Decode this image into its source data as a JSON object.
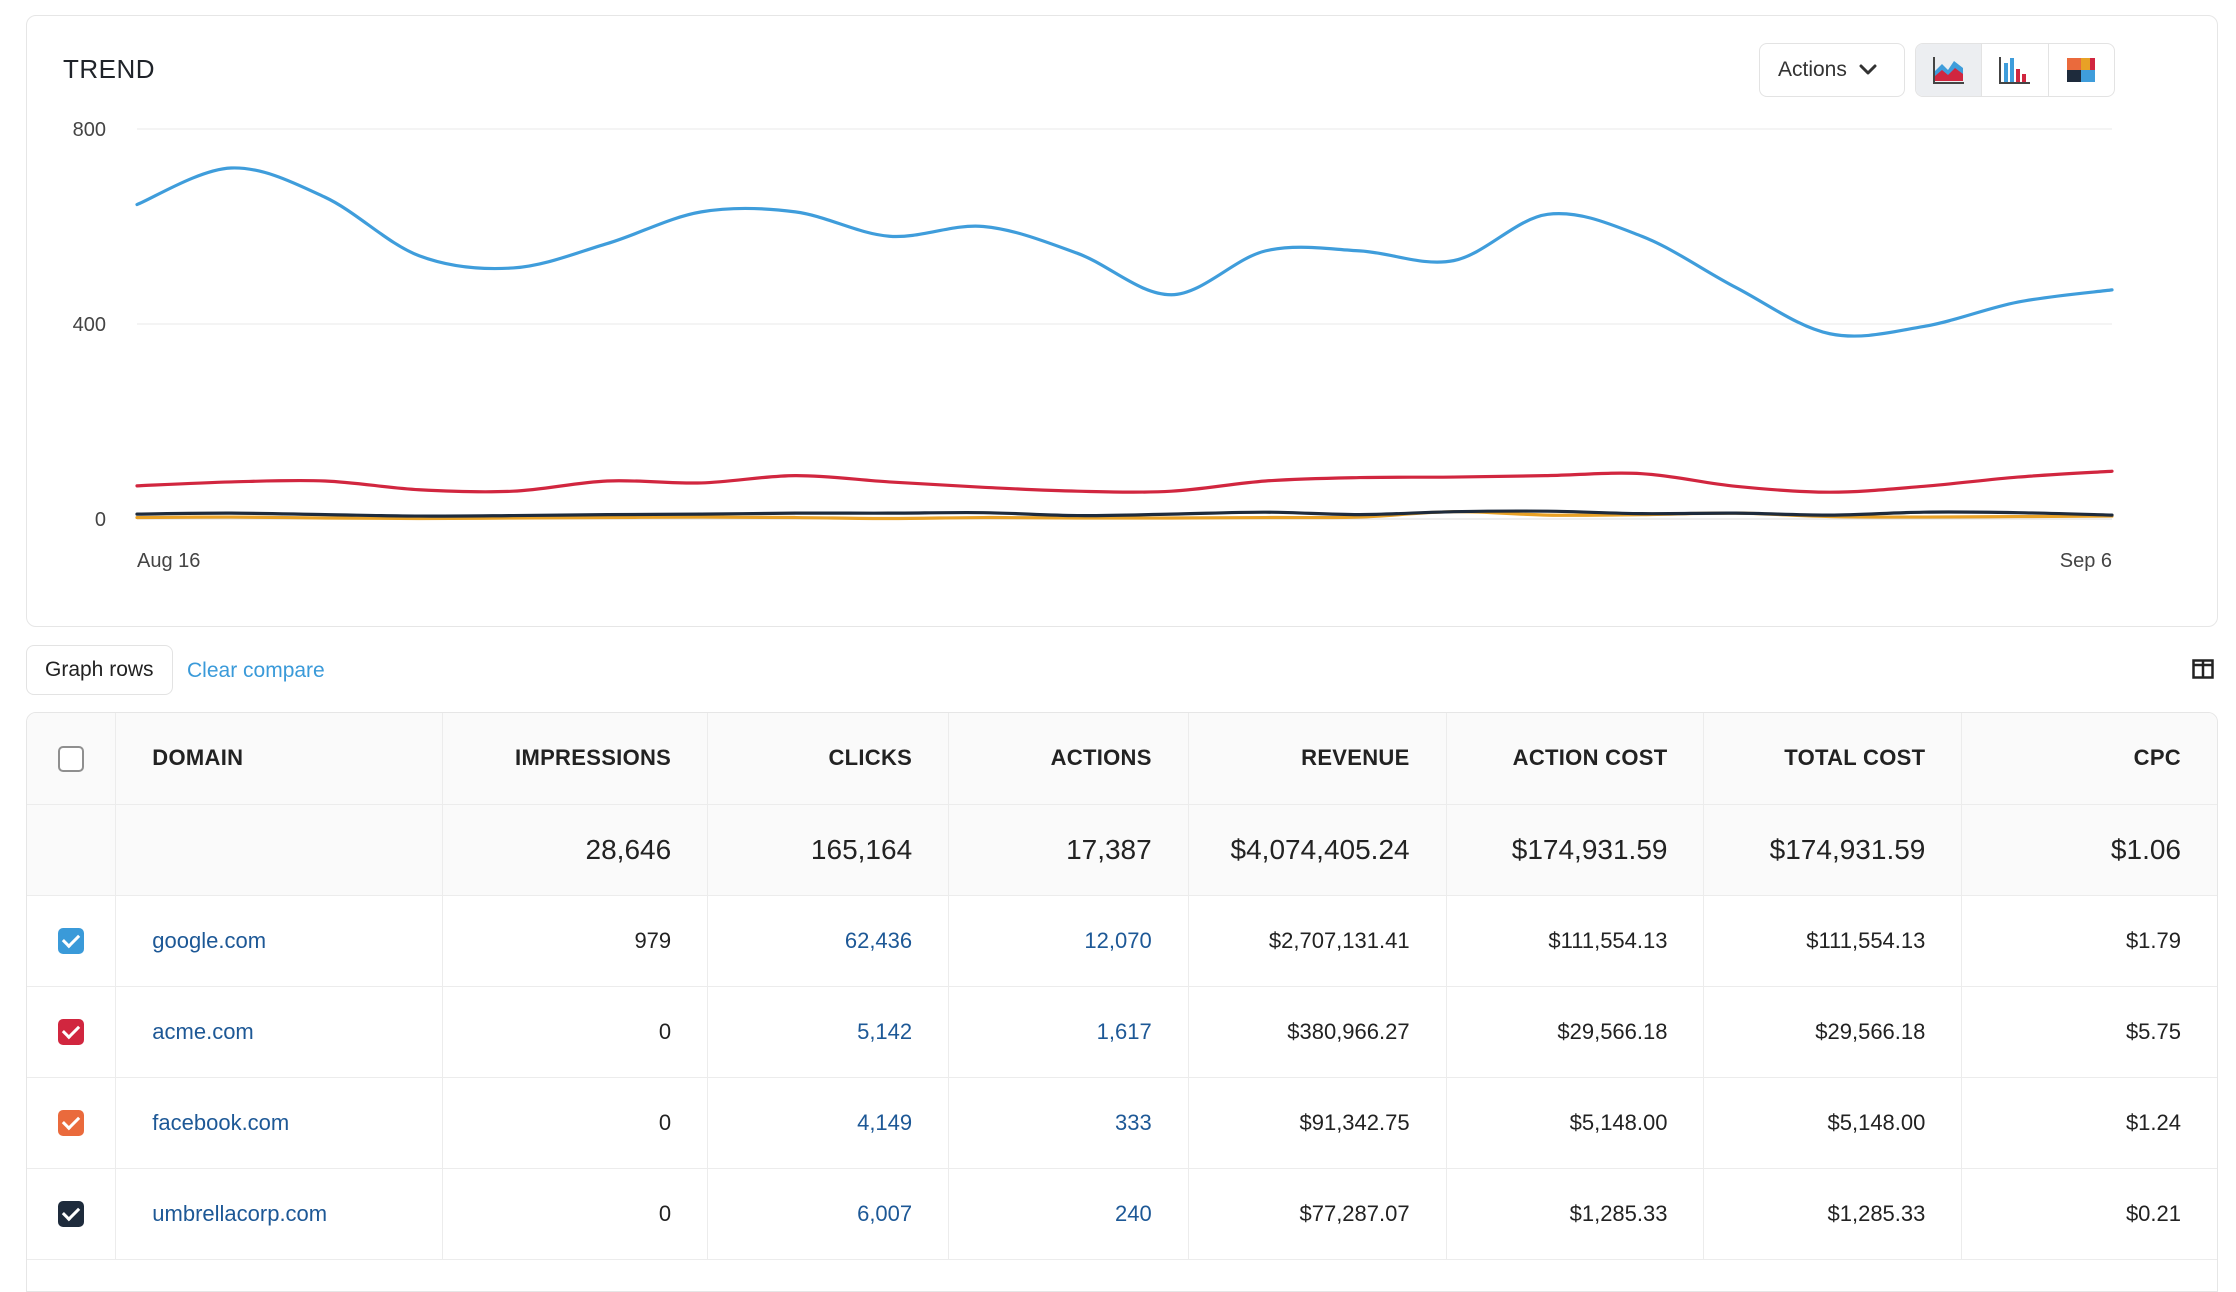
{
  "trend": {
    "title": "TREND",
    "actions_label": "Actions",
    "chart_modes": [
      {
        "name": "area-chart-icon",
        "active": true
      },
      {
        "name": "bar-chart-icon",
        "active": false
      },
      {
        "name": "heatmap-chart-icon",
        "active": false
      }
    ]
  },
  "chart_data": {
    "type": "line",
    "title": "TREND",
    "x": [
      "Aug 16",
      "Aug 17",
      "Aug 18",
      "Aug 19",
      "Aug 20",
      "Aug 21",
      "Aug 22",
      "Aug 23",
      "Aug 24",
      "Aug 25",
      "Aug 26",
      "Aug 27",
      "Aug 28",
      "Aug 29",
      "Aug 30",
      "Aug 31",
      "Sep 1",
      "Sep 2",
      "Sep 3",
      "Sep 4",
      "Sep 5",
      "Sep 6"
    ],
    "x_tick_labels": [
      "Aug 16",
      "Sep 6"
    ],
    "y_ticks": [
      0,
      400,
      800
    ],
    "ylim": [
      0,
      800
    ],
    "grid": true,
    "legend": "none",
    "series": [
      {
        "color": "#3f9ddb",
        "values": [
          645,
          720,
          660,
          540,
          515,
          565,
          630,
          630,
          580,
          600,
          545,
          460,
          550,
          550,
          530,
          625,
          580,
          475,
          380,
          395,
          445,
          470
        ]
      },
      {
        "color": "#d1263f",
        "values": [
          68,
          76,
          78,
          60,
          57,
          78,
          74,
          89,
          76,
          65,
          57,
          57,
          78,
          85,
          86,
          89,
          93,
          67,
          55,
          67,
          86,
          98
        ]
      },
      {
        "color": "#1e2b3c",
        "values": [
          10,
          12,
          9,
          6,
          7,
          9,
          10,
          12,
          12,
          13,
          7,
          10,
          14,
          9,
          15,
          16,
          11,
          12,
          8,
          14,
          13,
          8
        ]
      },
      {
        "color": "#e8a126",
        "values": [
          3,
          4,
          2,
          1,
          2,
          3,
          4,
          3,
          1,
          3,
          2,
          2,
          3,
          4,
          15,
          8,
          9,
          12,
          5,
          4,
          5,
          6
        ]
      }
    ]
  },
  "toolbar": {
    "graph_rows_label": "Graph rows",
    "clear_compare_label": "Clear compare"
  },
  "table": {
    "columns": [
      "DOMAIN",
      "IMPRESSIONS",
      "CLICKS",
      "ACTIONS",
      "REVENUE",
      "ACTION COST",
      "TOTAL COST",
      "CPC"
    ],
    "totals": {
      "impressions": "28,646",
      "clicks": "165,164",
      "actions": "17,387",
      "revenue": "$4,074,405.24",
      "action_cost": "$174,931.59",
      "total_cost": "$174,931.59",
      "cpc": "$1.06"
    },
    "rows": [
      {
        "color": "#3a9ad9",
        "domain": "google.com",
        "impressions": "979",
        "clicks": "62,436",
        "actions": "12,070",
        "revenue": "$2,707,131.41",
        "action_cost": "$111,554.13",
        "total_cost": "$111,554.13",
        "cpc": "$1.79"
      },
      {
        "color": "#d1263f",
        "domain": "acme.com",
        "impressions": "0",
        "clicks": "5,142",
        "actions": "1,617",
        "revenue": "$380,966.27",
        "action_cost": "$29,566.18",
        "total_cost": "$29,566.18",
        "cpc": "$5.75"
      },
      {
        "color": "#ea6a3c",
        "domain": "facebook.com",
        "impressions": "0",
        "clicks": "4,149",
        "actions": "333",
        "revenue": "$91,342.75",
        "action_cost": "$5,148.00",
        "total_cost": "$5,148.00",
        "cpc": "$1.24"
      },
      {
        "color": "#1e2b3c",
        "domain": "umbrellacorp.com",
        "impressions": "0",
        "clicks": "6,007",
        "actions": "240",
        "revenue": "$77,287.07",
        "action_cost": "$1,285.33",
        "total_cost": "$1,285.33",
        "cpc": "$0.21"
      }
    ]
  }
}
